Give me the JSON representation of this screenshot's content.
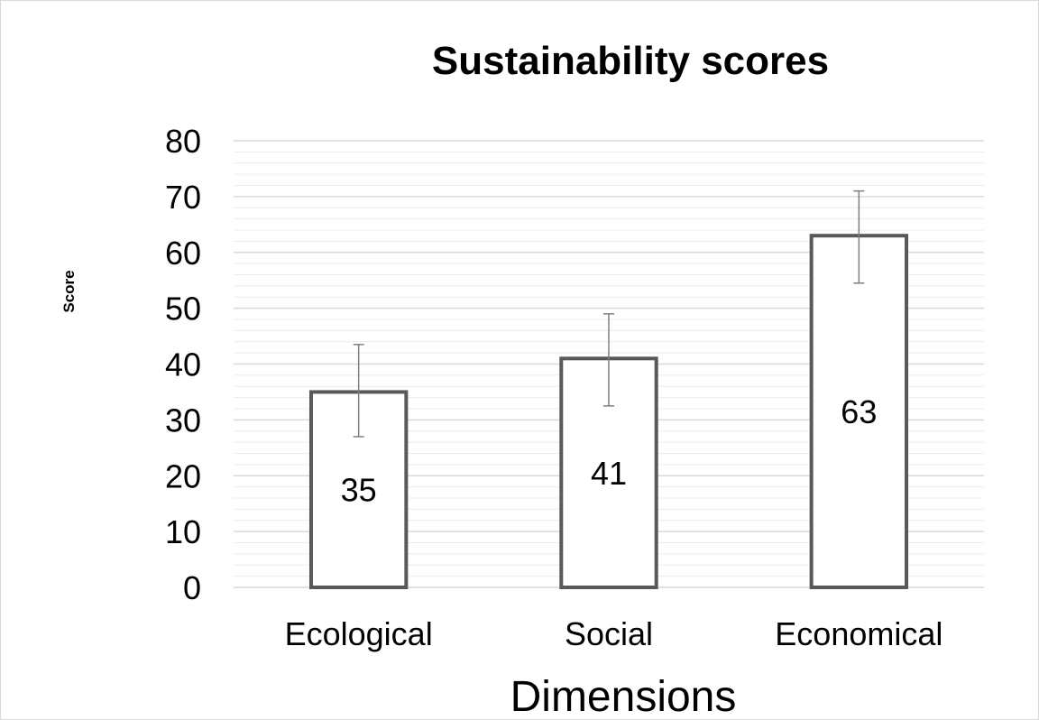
{
  "chart_data": {
    "type": "bar",
    "title": "Sustainability scores",
    "xlabel": "Dimensions",
    "ylabel": "Score",
    "categories": [
      "Ecological",
      "Social",
      "Economical"
    ],
    "values": [
      35,
      41,
      63
    ],
    "data_labels": [
      "35",
      "41",
      "63"
    ],
    "error_bars": [
      {
        "low": 27,
        "high": 43.5
      },
      {
        "low": 32.5,
        "high": 49
      },
      {
        "low": 54.5,
        "high": 71
      }
    ],
    "ylim": [
      0,
      80
    ],
    "yticks": [
      "0",
      "10",
      "20",
      "30",
      "40",
      "50",
      "60",
      "70",
      "80"
    ],
    "grid": "major and minor horizontal",
    "legend": "none",
    "colors": {
      "bar_fill": "#ffffff",
      "bar_outline": "#595959",
      "error_bar": "#808080",
      "gridline": "#d9d9d9",
      "minor_gridline": "#ececec",
      "text": "#000000"
    }
  }
}
